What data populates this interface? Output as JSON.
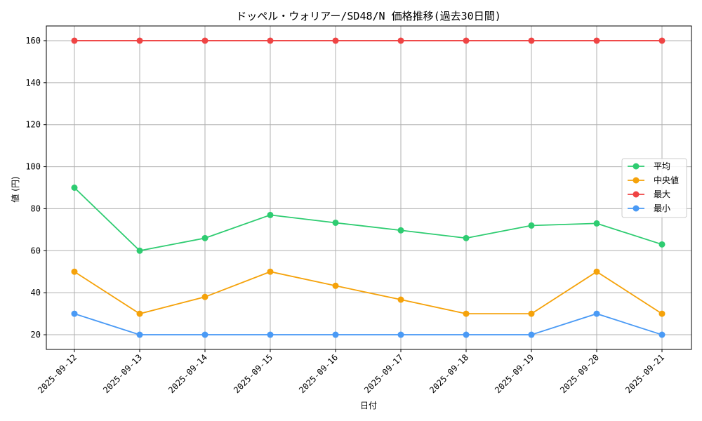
{
  "chart_data": {
    "type": "line",
    "title": "ドッペル・ウォリアー/SD48/N 価格推移(過去30日間)",
    "xlabel": "日付",
    "ylabel": "値 (円)",
    "categories": [
      "2025-09-12",
      "2025-09-13",
      "2025-09-14",
      "2025-09-15",
      "2025-09-16",
      "2025-09-17",
      "2025-09-18",
      "2025-09-19",
      "2025-09-20",
      "2025-09-21"
    ],
    "ylim": [
      13,
      167
    ],
    "yticks": [
      20,
      40,
      60,
      80,
      100,
      120,
      140,
      160
    ],
    "grid": true,
    "legend_position": "center-right",
    "series": [
      {
        "name": "平均",
        "color": "#2ecc71",
        "values": [
          90,
          60,
          66,
          77,
          73.3,
          69.7,
          66,
          72,
          73,
          63
        ]
      },
      {
        "name": "中央値",
        "color": "#f5a20a",
        "values": [
          50,
          30,
          38,
          50,
          43.3,
          36.7,
          30,
          30,
          50,
          30
        ]
      },
      {
        "name": "最大",
        "color": "#ef4444",
        "values": [
          160,
          160,
          160,
          160,
          160,
          160,
          160,
          160,
          160,
          160
        ]
      },
      {
        "name": "最小",
        "color": "#4a9af5",
        "values": [
          30,
          20,
          20,
          20,
          20,
          20,
          20,
          20,
          30,
          20
        ]
      }
    ]
  }
}
